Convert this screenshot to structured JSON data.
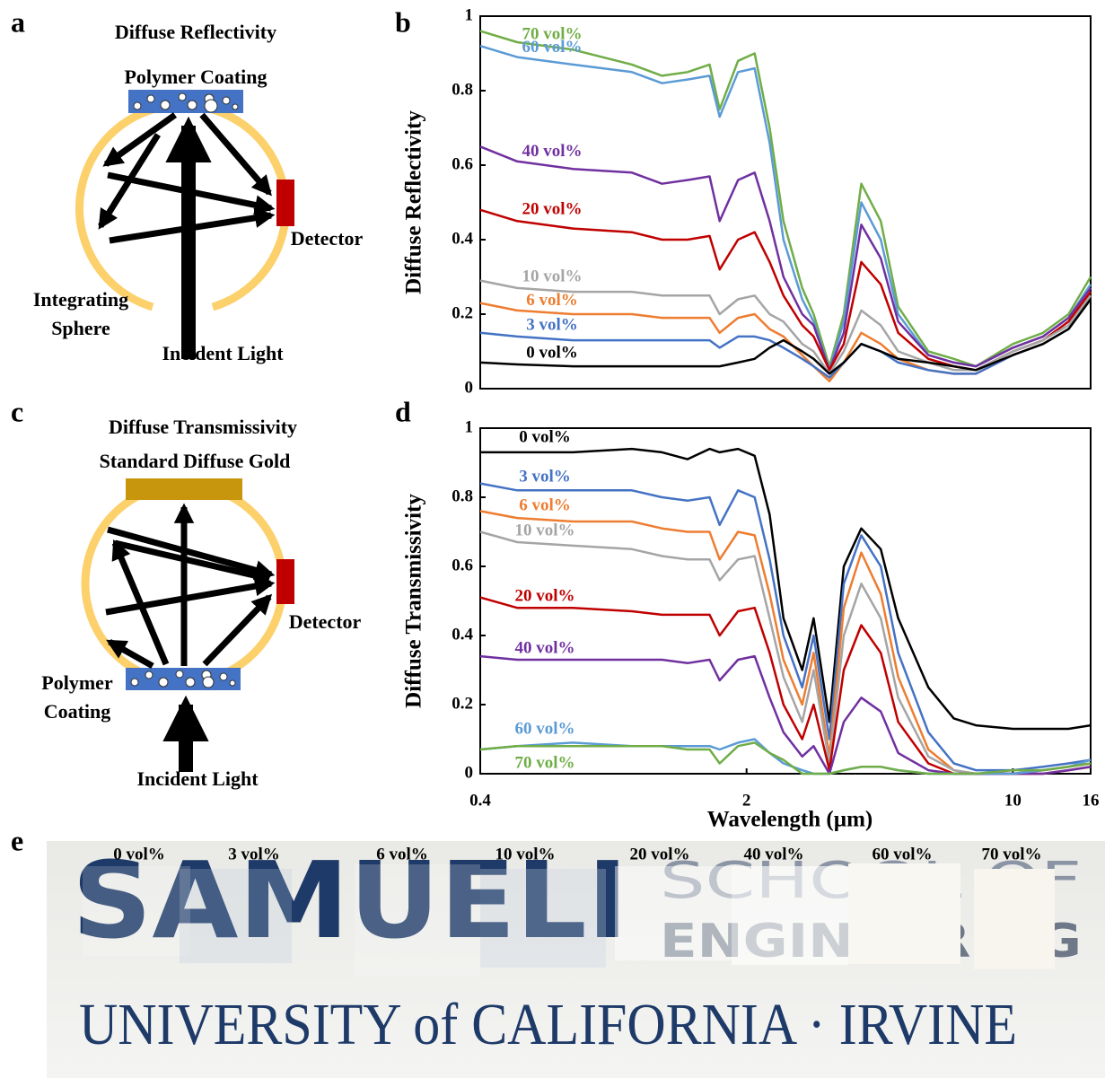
{
  "panel_labels": [
    "a",
    "b",
    "c",
    "d",
    "e"
  ],
  "diagram_a": {
    "title": "Diffuse Reflectivity",
    "sample": "Polymer Coating",
    "detector": "Detector",
    "sphere": [
      "Integrating",
      "Sphere"
    ],
    "source": "Incident Light"
  },
  "diagram_c": {
    "title": "Diffuse Transmissivity",
    "reference": "Standard Diffuse Gold",
    "detector": "Detector",
    "sample": [
      "Polymer",
      "Coating"
    ],
    "source": "Incident Light"
  },
  "chart_data": [
    {
      "type": "line",
      "ylabel": "Diffuse Reflectivity",
      "log_x": true,
      "xlim": [
        0.4,
        16
      ],
      "ylim": [
        0,
        1
      ],
      "yticks": [
        0,
        0.2,
        0.4,
        0.6,
        0.8,
        1
      ],
      "x": [
        0.4,
        0.5,
        0.7,
        1.0,
        1.2,
        1.4,
        1.6,
        1.7,
        1.9,
        2.1,
        2.3,
        2.5,
        2.8,
        3.0,
        3.3,
        3.6,
        4.0,
        4.5,
        5.0,
        6,
        7,
        8,
        10,
        12,
        14,
        16
      ],
      "series": [
        {
          "name": "70 vol%",
          "color": "#70ad47",
          "values": [
            0.96,
            0.93,
            0.91,
            0.87,
            0.84,
            0.85,
            0.87,
            0.75,
            0.88,
            0.9,
            0.7,
            0.45,
            0.27,
            0.2,
            0.06,
            0.2,
            0.55,
            0.45,
            0.22,
            0.1,
            0.08,
            0.06,
            0.12,
            0.15,
            0.2,
            0.3
          ]
        },
        {
          "name": "60 vol%",
          "color": "#5b9bd5",
          "values": [
            0.92,
            0.89,
            0.87,
            0.85,
            0.82,
            0.83,
            0.84,
            0.73,
            0.85,
            0.86,
            0.66,
            0.4,
            0.24,
            0.18,
            0.05,
            0.18,
            0.5,
            0.4,
            0.2,
            0.09,
            0.07,
            0.06,
            0.11,
            0.14,
            0.19,
            0.28
          ]
        },
        {
          "name": "40 vol%",
          "color": "#7030a0",
          "values": [
            0.65,
            0.61,
            0.59,
            0.58,
            0.55,
            0.56,
            0.57,
            0.45,
            0.56,
            0.58,
            0.45,
            0.3,
            0.2,
            0.17,
            0.05,
            0.15,
            0.44,
            0.35,
            0.18,
            0.09,
            0.07,
            0.06,
            0.11,
            0.14,
            0.19,
            0.27
          ]
        },
        {
          "name": "20 vol%",
          "color": "#c00000",
          "values": [
            0.48,
            0.45,
            0.43,
            0.42,
            0.4,
            0.4,
            0.41,
            0.32,
            0.4,
            0.42,
            0.34,
            0.25,
            0.17,
            0.14,
            0.05,
            0.12,
            0.34,
            0.28,
            0.15,
            0.08,
            0.06,
            0.05,
            0.1,
            0.13,
            0.18,
            0.26
          ]
        },
        {
          "name": "10 vol%",
          "color": "#a5a5a5",
          "values": [
            0.29,
            0.27,
            0.26,
            0.26,
            0.25,
            0.25,
            0.25,
            0.2,
            0.24,
            0.25,
            0.2,
            0.18,
            0.12,
            0.1,
            0.04,
            0.1,
            0.21,
            0.17,
            0.1,
            0.07,
            0.05,
            0.05,
            0.1,
            0.13,
            0.17,
            0.25
          ]
        },
        {
          "name": "6 vol%",
          "color": "#ed7d31",
          "values": [
            0.23,
            0.21,
            0.2,
            0.2,
            0.19,
            0.19,
            0.19,
            0.15,
            0.19,
            0.2,
            0.16,
            0.14,
            0.09,
            0.06,
            0.02,
            0.07,
            0.15,
            0.12,
            0.08,
            0.05,
            0.04,
            0.04,
            0.09,
            0.12,
            0.16,
            0.24
          ]
        },
        {
          "name": "3 vol%",
          "color": "#4472c4",
          "values": [
            0.15,
            0.14,
            0.13,
            0.13,
            0.13,
            0.13,
            0.13,
            0.11,
            0.14,
            0.14,
            0.13,
            0.11,
            0.08,
            0.06,
            0.03,
            0.07,
            0.12,
            0.1,
            0.07,
            0.05,
            0.04,
            0.04,
            0.09,
            0.12,
            0.16,
            0.24
          ]
        },
        {
          "name": "0 vol%",
          "color": "#000000",
          "values": [
            0.07,
            0.065,
            0.06,
            0.06,
            0.06,
            0.06,
            0.06,
            0.06,
            0.07,
            0.08,
            0.11,
            0.13,
            0.1,
            0.08,
            0.04,
            0.07,
            0.12,
            0.1,
            0.08,
            0.07,
            0.06,
            0.05,
            0.09,
            0.12,
            0.16,
            0.24
          ]
        }
      ]
    },
    {
      "type": "line",
      "ylabel": "Diffuse Transmissivity",
      "xlabel": "Wavelength (µm)",
      "log_x": true,
      "xlim": [
        0.4,
        16
      ],
      "xticks": [
        0.4,
        2,
        10,
        16
      ],
      "ylim": [
        0,
        1
      ],
      "yticks": [
        0,
        0.2,
        0.4,
        0.6,
        0.8,
        1
      ],
      "x": [
        0.4,
        0.5,
        0.7,
        1.0,
        1.2,
        1.4,
        1.6,
        1.7,
        1.9,
        2.1,
        2.3,
        2.5,
        2.8,
        3.0,
        3.3,
        3.6,
        4.0,
        4.5,
        5.0,
        6,
        7,
        8,
        10,
        12,
        14,
        16
      ],
      "series": [
        {
          "name": "0 vol%",
          "color": "#000000",
          "values": [
            0.93,
            0.93,
            0.93,
            0.94,
            0.93,
            0.91,
            0.94,
            0.93,
            0.94,
            0.92,
            0.75,
            0.45,
            0.3,
            0.45,
            0.15,
            0.6,
            0.71,
            0.65,
            0.45,
            0.25,
            0.16,
            0.14,
            0.13,
            0.13,
            0.13,
            0.14
          ]
        },
        {
          "name": "3 vol%",
          "color": "#4472c4",
          "values": [
            0.84,
            0.82,
            0.82,
            0.82,
            0.8,
            0.79,
            0.8,
            0.72,
            0.82,
            0.8,
            0.62,
            0.4,
            0.25,
            0.4,
            0.1,
            0.55,
            0.69,
            0.6,
            0.35,
            0.12,
            0.03,
            0.01,
            0.01,
            0.02,
            0.03,
            0.04
          ]
        },
        {
          "name": "6 vol%",
          "color": "#ed7d31",
          "values": [
            0.76,
            0.74,
            0.73,
            0.73,
            0.71,
            0.7,
            0.7,
            0.62,
            0.7,
            0.69,
            0.52,
            0.33,
            0.2,
            0.35,
            0.05,
            0.48,
            0.64,
            0.52,
            0.28,
            0.07,
            0.01,
            0,
            0,
            0.01,
            0.02,
            0.03
          ]
        },
        {
          "name": "10 vol%",
          "color": "#a5a5a5",
          "values": [
            0.7,
            0.67,
            0.66,
            0.65,
            0.63,
            0.62,
            0.62,
            0.56,
            0.62,
            0.63,
            0.45,
            0.28,
            0.15,
            0.3,
            0.03,
            0.4,
            0.55,
            0.45,
            0.22,
            0.05,
            0.01,
            0,
            0,
            0.01,
            0.02,
            0.03
          ]
        },
        {
          "name": "20 vol%",
          "color": "#c00000",
          "values": [
            0.51,
            0.48,
            0.48,
            0.47,
            0.46,
            0.46,
            0.46,
            0.4,
            0.47,
            0.48,
            0.35,
            0.2,
            0.1,
            0.2,
            0.01,
            0.3,
            0.43,
            0.35,
            0.15,
            0.03,
            0,
            0,
            0,
            0,
            0.01,
            0.02
          ]
        },
        {
          "name": "40 vol%",
          "color": "#7030a0",
          "values": [
            0.34,
            0.33,
            0.33,
            0.33,
            0.33,
            0.32,
            0.33,
            0.27,
            0.33,
            0.34,
            0.22,
            0.12,
            0.05,
            0.08,
            0,
            0.15,
            0.22,
            0.18,
            0.06,
            0.01,
            0,
            0,
            0,
            0,
            0.01,
            0.02
          ]
        },
        {
          "name": "60 vol%",
          "color": "#5b9bd5",
          "values": [
            0.07,
            0.08,
            0.09,
            0.08,
            0.08,
            0.08,
            0.08,
            0.07,
            0.09,
            0.1,
            0.06,
            0.03,
            0.01,
            0,
            0,
            0.01,
            0.02,
            0.02,
            0.01,
            0,
            0,
            0,
            0,
            0.01,
            0.02,
            0.04
          ]
        },
        {
          "name": "70 vol%",
          "color": "#70ad47",
          "values": [
            0.07,
            0.08,
            0.08,
            0.08,
            0.08,
            0.07,
            0.07,
            0.03,
            0.08,
            0.09,
            0.06,
            0.04,
            0,
            0,
            0,
            0.01,
            0.02,
            0.02,
            0.01,
            0,
            0,
            0,
            0.01,
            0.01,
            0.02,
            0.03
          ]
        }
      ]
    }
  ],
  "photo": {
    "sample_labels": [
      "0 vol%",
      "3 vol%",
      "6 vol%",
      "10 vol%",
      "20 vol%",
      "40 vol%",
      "60 vol%",
      "70 vol%"
    ],
    "logo": "SAMUELI",
    "school": [
      "SCHOOL OF",
      "ENGINEERING"
    ],
    "university": "UNIVERSITY of CALIFORNIA · IRVINE"
  }
}
